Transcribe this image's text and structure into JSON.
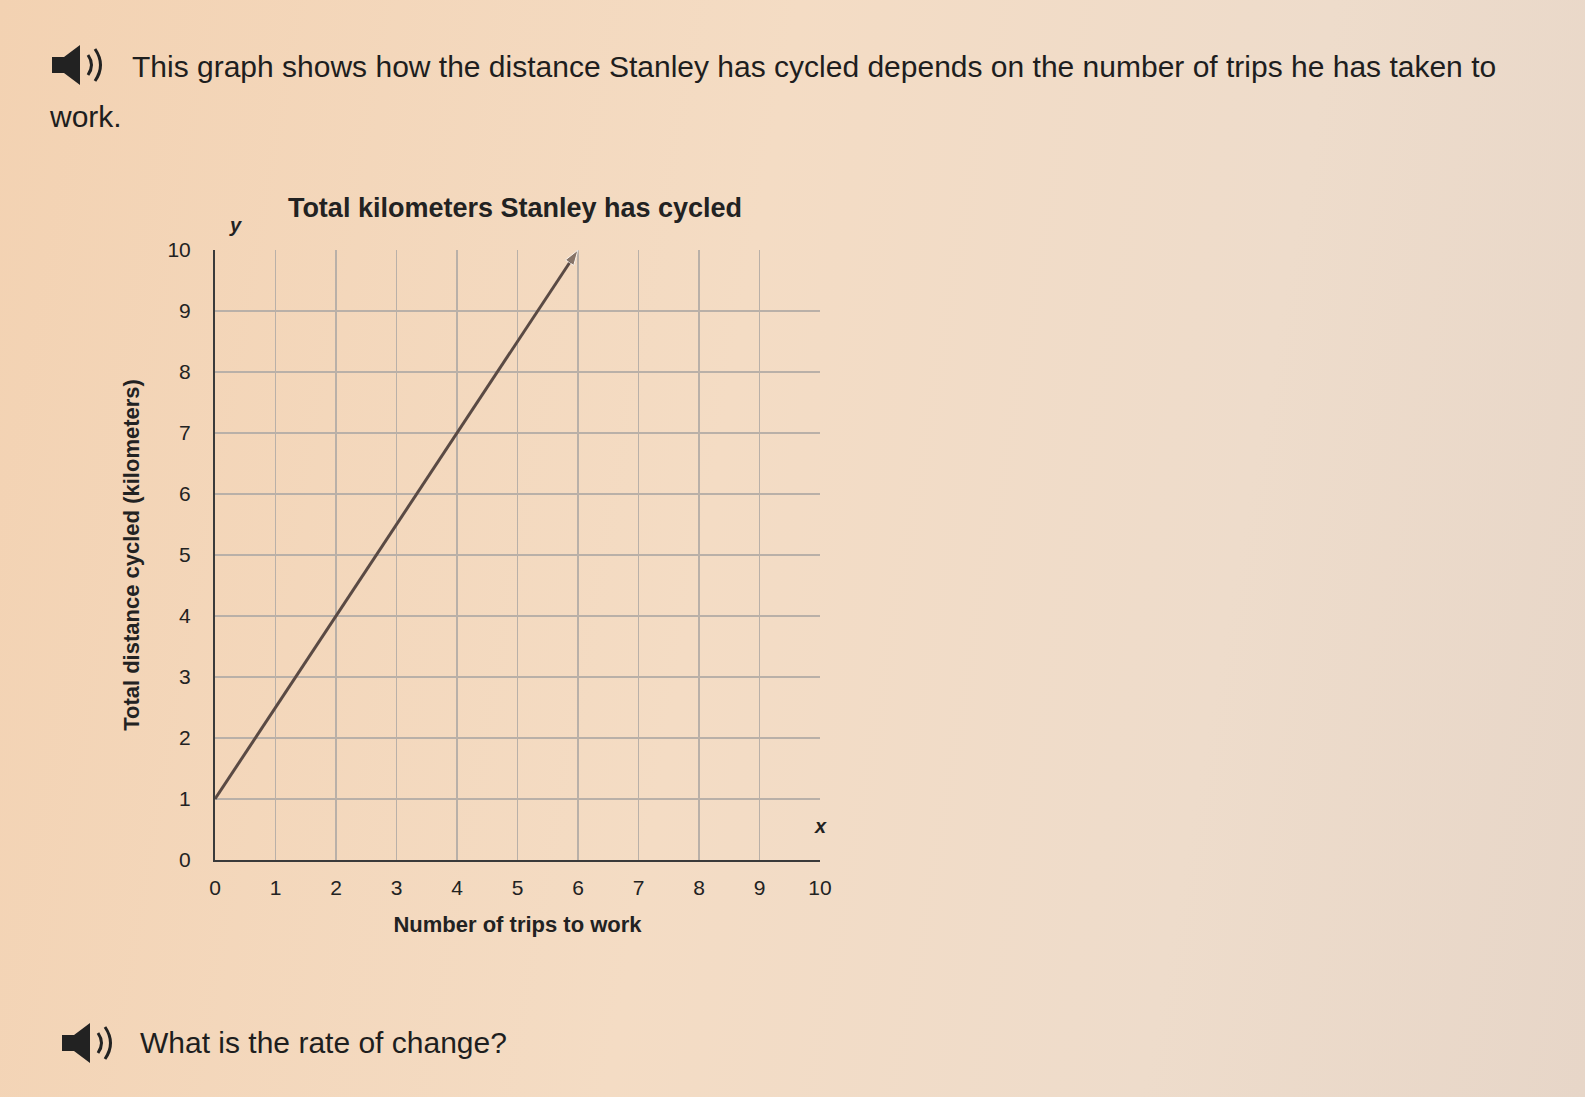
{
  "page": {
    "intro": "This graph shows how the distance Stanley has cycled depends on the number of trips he has taken to work.",
    "question": "What is the rate of change?"
  },
  "chart_data": {
    "type": "line",
    "title": "Total kilometers Stanley has cycled",
    "x_label": "Number of trips to work",
    "y_label": "Total distance cycled (kilometers)",
    "x": [
      0,
      6
    ],
    "values": [
      1,
      10
    ],
    "color": "#5a4a44",
    "marker": "arrow",
    "line_style": "solid",
    "xlim": [
      0,
      10
    ],
    "ylim": [
      0,
      10
    ],
    "xticks": [
      0,
      1,
      2,
      3,
      4,
      5,
      6,
      7,
      8,
      9,
      10
    ],
    "yticks": [
      0,
      1,
      2,
      3,
      4,
      5,
      6,
      7,
      8,
      9,
      10
    ],
    "annotations": [
      "y",
      "x"
    ],
    "grid": true
  }
}
